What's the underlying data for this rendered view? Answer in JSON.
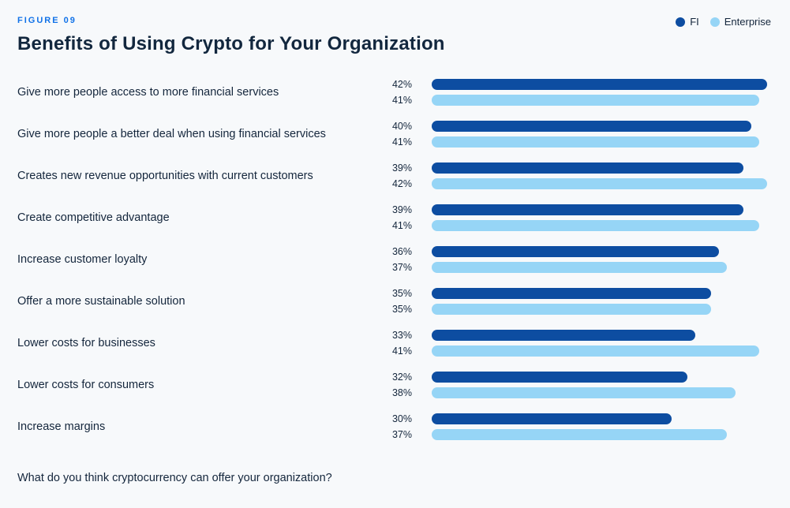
{
  "figure_label": "FIGURE 09",
  "title": "Benefits of Using Crypto for Your Organization",
  "legend": [
    {
      "label": "FI",
      "color": "#0d4da1"
    },
    {
      "label": "Enterprise",
      "color": "#96d5f6"
    }
  ],
  "footer_question": "What do you think cryptocurrency can offer your organization?",
  "chart_data": {
    "type": "bar",
    "orientation": "horizontal",
    "title": "Benefits of Using Crypto for Your Organization",
    "value_suffix": "%",
    "axis_max": 42,
    "grid": false,
    "legend_position": "top-right",
    "categories": [
      "Give more people access to more financial services",
      "Give more people a better deal when using financial services",
      "Creates new revenue opportunities with current customers",
      "Create competitive advantage",
      "Increase customer loyalty",
      "Offer a more sustainable solution",
      "Lower costs for businesses",
      "Lower costs for consumers",
      "Increase margins"
    ],
    "series": [
      {
        "name": "FI",
        "color": "#0d4da1",
        "values": [
          42,
          40,
          39,
          39,
          36,
          35,
          33,
          32,
          30
        ]
      },
      {
        "name": "Enterprise",
        "color": "#96d5f6",
        "values": [
          41,
          41,
          42,
          41,
          37,
          35,
          41,
          38,
          37
        ]
      }
    ]
  }
}
